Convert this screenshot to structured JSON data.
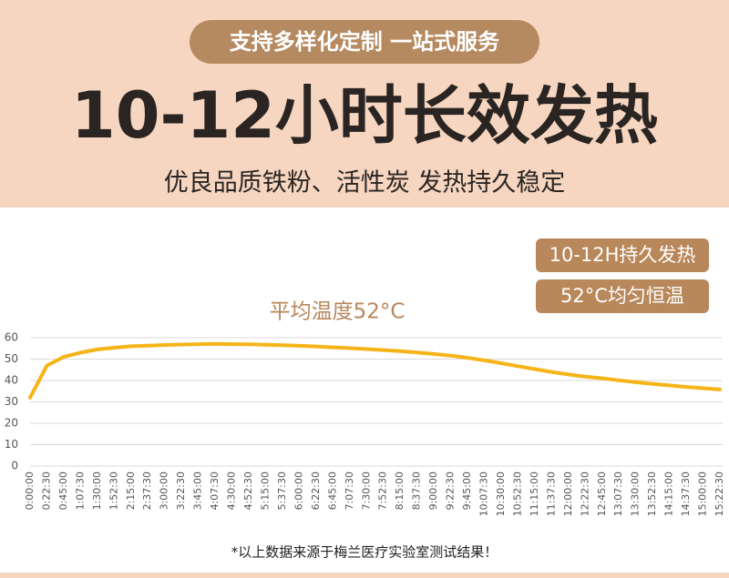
{
  "header": {
    "tagline": "支持多样化定制 一站式服务",
    "title": "10-12小时长效发热",
    "subtitle": "优良品质铁粉、活性炭 发热持久稳定"
  },
  "badges": [
    "10-12H持久发热",
    "52°C均匀恒温"
  ],
  "footnote": "*以上数据来源于梅兰医疗实验室测试结果！",
  "chart_data": {
    "type": "line",
    "title": "平均温度52°C",
    "categories": [
      "0:00:00",
      "0:22:30",
      "0:45:00",
      "1:07:30",
      "1:30:00",
      "1:52:30",
      "2:15:00",
      "2:37:30",
      "3:00:00",
      "3:22:30",
      "3:45:00",
      "4:07:30",
      "4:30:00",
      "4:52:30",
      "5:15:00",
      "5:37:30",
      "6:00:00",
      "6:22:30",
      "6:45:00",
      "7:07:30",
      "7:30:00",
      "7:52:30",
      "8:15:00",
      "8:37:30",
      "9:00:00",
      "9:22:30",
      "9:45:00",
      "10:07:30",
      "10:30:00",
      "10:52:30",
      "11:15:00",
      "11:37:30",
      "12:00:00",
      "12:22:30",
      "12:45:00",
      "13:07:30",
      "13:30:00",
      "13:52:30",
      "14:15:00",
      "14:37:30",
      "15:00:00",
      "15:22:30"
    ],
    "values": [
      32,
      47,
      51,
      53,
      54.5,
      55.3,
      56,
      56.3,
      56.6,
      56.8,
      57,
      57.1,
      57,
      56.9,
      56.7,
      56.5,
      56.2,
      55.9,
      55.5,
      55.1,
      54.7,
      54.2,
      53.7,
      53.1,
      52.4,
      51.6,
      50.6,
      49.4,
      48.1,
      46.7,
      45.3,
      44,
      42.8,
      41.8,
      41,
      40.1,
      39.2,
      38.4,
      37.7,
      37,
      36.4,
      35.8
    ],
    "color": "#f5b418",
    "ylim": [
      0,
      60
    ],
    "yticks": [
      0,
      10,
      20,
      30,
      40,
      50,
      60
    ],
    "grid": true
  }
}
